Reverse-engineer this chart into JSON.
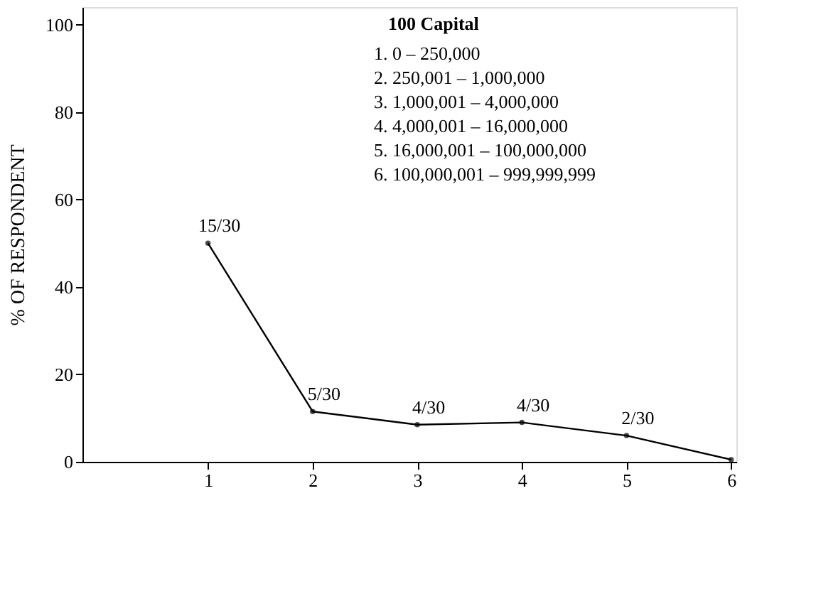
{
  "chart_data": {
    "type": "line",
    "x": [
      1,
      2,
      3,
      4,
      5,
      6
    ],
    "series": [
      {
        "color": "#000000",
        "values": [
          50,
          11.5,
          8.5,
          9,
          6,
          0.5
        ],
        "value_labels": [
          "15/30",
          "5/30",
          "4/30",
          "4/30",
          "2/30",
          null
        ]
      }
    ],
    "ylabel": "% OF RESPONDENT",
    "xlim": [
      -0.2,
      6.05
    ],
    "xticks": [
      1,
      2,
      3,
      4,
      5,
      6
    ],
    "ylim": [
      0,
      104
    ],
    "yticks": [
      0,
      20,
      40,
      60,
      80,
      100
    ],
    "grid": false,
    "marker": "circle",
    "line_style": "solid",
    "annotations": [
      "100 Capital",
      "1. 0 – 250,000",
      "2. 250,001 – 1,000,000",
      "3. 1,000,001 – 4,000,000",
      "4. 4,000,001 – 16,000,000",
      "5. 16,000,001 – 100,000,000",
      "6. 100,000,001 – 999,999,999"
    ]
  }
}
